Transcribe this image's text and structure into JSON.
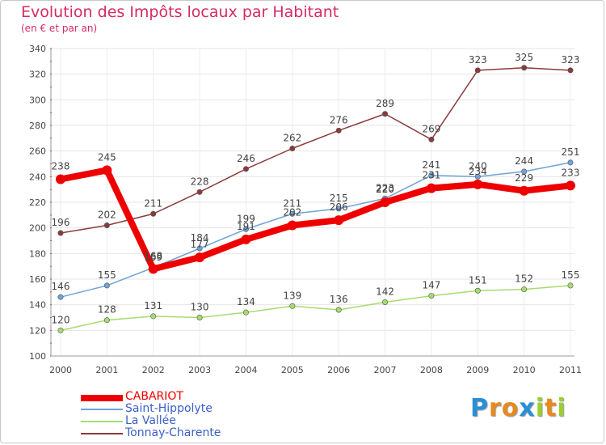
{
  "title": "Evolution des Impôts locaux par Habitant",
  "subtitle": "(en € et par an)",
  "logo": {
    "letters": [
      "P",
      "r",
      "o",
      "x",
      "i",
      "t",
      "i"
    ],
    "colors": [
      "#2a8fd6",
      "#e8891f",
      "#e8891f",
      "#2a8fd6",
      "#9bcf2e",
      "#e8891f",
      "#9bcf2e"
    ]
  },
  "chart_data": {
    "type": "line",
    "title": "Evolution des Impôts locaux par Habitant",
    "subtitle": "(en € et par an)",
    "x": [
      "2000",
      "2001",
      "2002",
      "2003",
      "2004",
      "2005",
      "2006",
      "2007",
      "2008",
      "2009",
      "2010",
      "2011"
    ],
    "ylim": [
      100,
      340
    ],
    "yticks": [
      100,
      120,
      140,
      160,
      180,
      200,
      220,
      240,
      260,
      280,
      300,
      320,
      340
    ],
    "grid": true,
    "legend": "bottom-left",
    "series": [
      {
        "name": "CABARIOT",
        "color": "#ee0000",
        "values": [
          238,
          245,
          168,
          177,
          191,
          202,
          206,
          220,
          231,
          234,
          229,
          233
        ],
        "labels": [
          "238",
          "245",
          "168",
          "177",
          "191",
          "202",
          "206",
          "220",
          "231",
          "234",
          "229",
          "233"
        ]
      },
      {
        "name": "Saint-Hippolyte",
        "color": "#6fa3d8",
        "values": [
          146,
          155,
          169,
          184,
          199,
          211,
          215,
          223,
          241,
          240,
          244,
          251
        ],
        "labels": [
          "146",
          "155",
          "169",
          "184",
          "199",
          "211",
          "215",
          "223",
          "241",
          "240",
          "244",
          "251"
        ]
      },
      {
        "name": "La Vallée",
        "color": "#a6dc6e",
        "values": [
          120,
          128,
          131,
          130,
          134,
          139,
          136,
          142,
          147,
          151,
          152,
          155
        ],
        "labels": [
          "120",
          "128",
          "131",
          "130",
          "134",
          "139",
          "136",
          "142",
          "147",
          "151",
          "152",
          "155"
        ]
      },
      {
        "name": "Tonnay-Charente",
        "color": "#8b3a3a",
        "values": [
          196,
          202,
          211,
          228,
          246,
          262,
          276,
          289,
          269,
          323,
          325,
          323
        ],
        "labels": [
          "196",
          "202",
          "211",
          "228",
          "246",
          "262",
          "276",
          "289",
          "269",
          "323",
          "325",
          "323"
        ]
      }
    ]
  }
}
